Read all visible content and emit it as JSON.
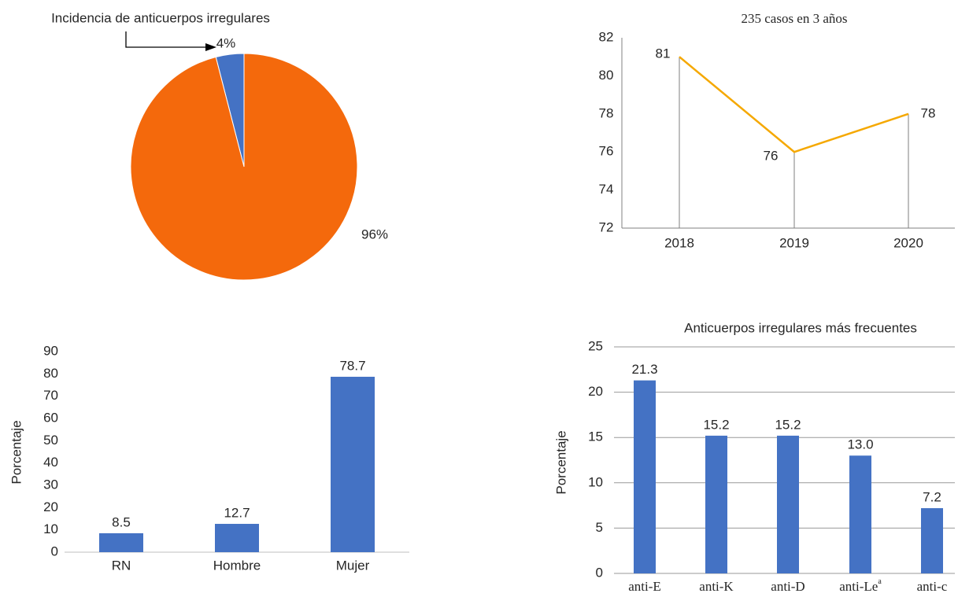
{
  "colors": {
    "pie_major": "#F4690C",
    "pie_minor": "#4472C4",
    "bar": "#4472C4",
    "line": "#F5A800",
    "axis": "#808080",
    "grid": "#999999",
    "text": "#262626"
  },
  "chart_data": [
    {
      "type": "pie",
      "title": "Incidencia de anticuerpos irregulares",
      "slices": [
        {
          "label": "4%",
          "value": 4,
          "color": "#4472C4"
        },
        {
          "label": "96%",
          "value": 96,
          "color": "#F4690C"
        }
      ],
      "annotation": "arrow pointing to the 4% slice"
    },
    {
      "type": "line",
      "title": "235 casos en 3 años",
      "x": [
        "2018",
        "2019",
        "2020"
      ],
      "y": [
        81,
        76,
        78
      ],
      "data_labels": [
        "81",
        "76",
        "78"
      ],
      "ylim": [
        72,
        82
      ],
      "yticks": [
        "72",
        "74",
        "76",
        "78",
        "80",
        "82"
      ],
      "drop_lines": true,
      "grid": false
    },
    {
      "type": "bar",
      "title": "",
      "categories": [
        "RN",
        "Hombre",
        "Mujer"
      ],
      "values": [
        8.5,
        12.7,
        78.7
      ],
      "data_labels": [
        "8.5",
        "12.7",
        "78.7"
      ],
      "ylabel": "Porcentaje",
      "ylim": [
        0,
        90
      ],
      "yticks": [
        "0",
        "10",
        "20",
        "30",
        "40",
        "50",
        "60",
        "70",
        "80",
        "90"
      ],
      "grid": false
    },
    {
      "type": "bar",
      "title": "Anticuerpos irregulares más frecuentes",
      "categories": [
        "anti-E",
        "anti-K",
        "anti-D",
        "anti-Le",
        "anti-c"
      ],
      "category_superscripts": [
        "",
        "",
        "",
        "a",
        ""
      ],
      "values": [
        21.3,
        15.2,
        15.2,
        13.0,
        7.2
      ],
      "data_labels": [
        "21.3",
        "15.2",
        "15.2",
        "13.0",
        "7.2"
      ],
      "ylabel": "Porcentaje",
      "ylim": [
        0,
        25
      ],
      "yticks": [
        "0",
        "5",
        "10",
        "15",
        "20",
        "25"
      ],
      "grid": true
    }
  ]
}
